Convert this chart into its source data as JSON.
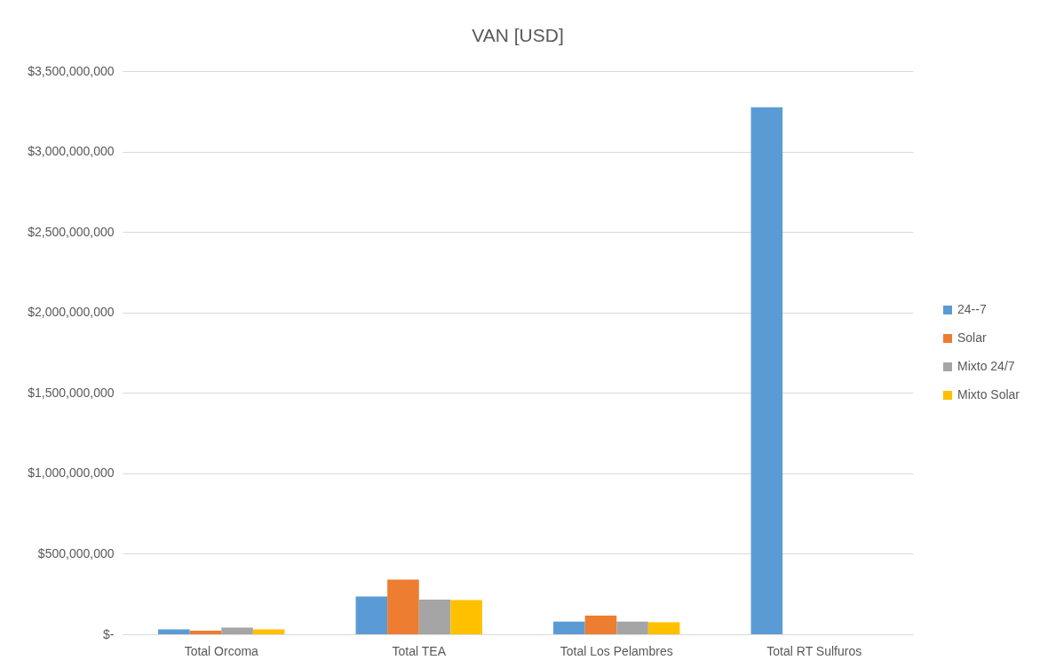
{
  "chart_data": {
    "type": "bar",
    "title": "VAN [USD]",
    "categories": [
      "Total Orcoma",
      "Total TEA",
      "Total Los Pelambres",
      "Total RT Sulfuros"
    ],
    "series": [
      {
        "name": "24--7",
        "color": "#5b9bd5",
        "values": [
          30000000,
          235000000,
          79000000,
          3275000000
        ]
      },
      {
        "name": "Solar",
        "color": "#ed7d31",
        "values": [
          22000000,
          339000000,
          116000000,
          null
        ]
      },
      {
        "name": "Mixto 24/7",
        "color": "#a5a5a5",
        "values": [
          42000000,
          215000000,
          79000000,
          null
        ]
      },
      {
        "name": "Mixto Solar",
        "color": "#ffc000",
        "values": [
          30000000,
          213000000,
          74000000,
          null
        ]
      }
    ],
    "ylim": [
      0,
      3500000000
    ],
    "yticks": [
      {
        "value": 0,
        "label": "$-"
      },
      {
        "value": 500000000,
        "label": "$500,000,000"
      },
      {
        "value": 1000000000,
        "label": "$1,000,000,000"
      },
      {
        "value": 1500000000,
        "label": "$1,500,000,000"
      },
      {
        "value": 2000000000,
        "label": "$2,000,000,000"
      },
      {
        "value": 2500000000,
        "label": "$2,500,000,000"
      },
      {
        "value": 3000000000,
        "label": "$3,000,000,000"
      },
      {
        "value": 3500000000,
        "label": "$3,500,000,000"
      }
    ],
    "grid": "y",
    "legend": "right"
  }
}
